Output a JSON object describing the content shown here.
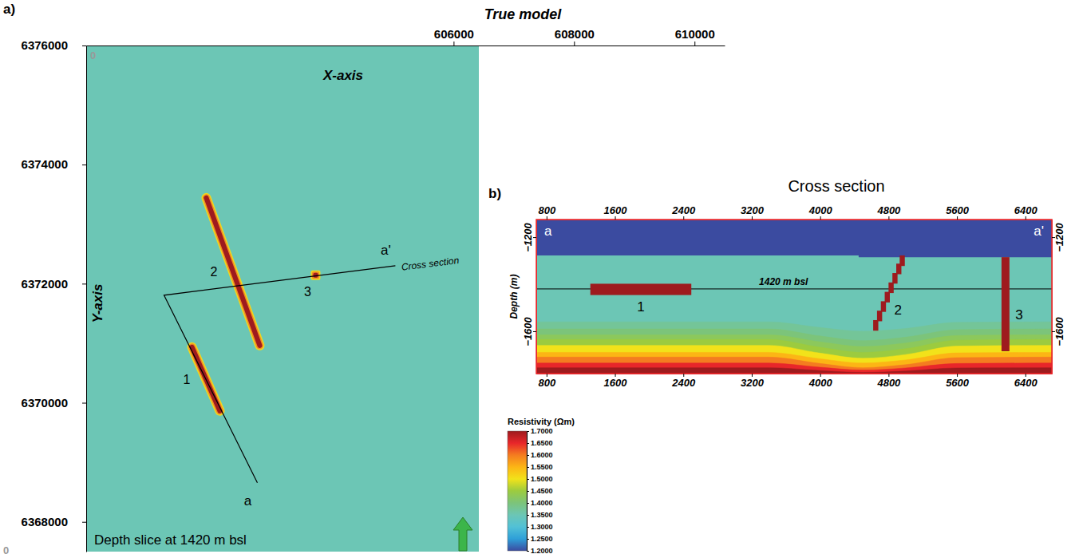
{
  "chart_data": [
    {
      "type": "map",
      "panel": "a)",
      "title": "True model",
      "x_label": "X-axis",
      "y_label": "Y-axis",
      "annotation": "Depth slice at 1420 m bsl",
      "origin_labels": [
        "0",
        "0"
      ],
      "xlim": [
        599900,
        610500
      ],
      "ylim": [
        6367500,
        6376000
      ],
      "xticks": [
        606000,
        608000,
        610000
      ],
      "yticks": [
        6368000,
        6370000,
        6372000,
        6374000,
        6376000
      ],
      "background_resistivity": 1.35,
      "feature_resistivity": 1.7,
      "features": [
        {
          "label": "1",
          "x": [
            601656,
            602119
          ],
          "y": [
            6370935,
            6369863
          ]
        },
        {
          "label": "2",
          "x": [
            601894,
            602781
          ],
          "y": [
            6373441,
            6370961
          ]
        },
        {
          "label": "3",
          "x": [
            603709
          ],
          "y": [
            6372141
          ]
        }
      ],
      "profile": {
        "x": [
          602742,
          601192,
          605033
        ],
        "y": [
          6368657,
          6371806,
          6372302
        ],
        "start_label": "a",
        "end_label": "a'",
        "label": "Cross section"
      }
    },
    {
      "type": "cross_section",
      "panel": "b)",
      "title": "Cross section",
      "y_label": "Depth (m)",
      "xlim": [
        680,
        6710
      ],
      "ylim": [
        -1780,
        -1125
      ],
      "xticks": [
        800,
        1600,
        2400,
        3200,
        4000,
        4800,
        5600,
        6400
      ],
      "yticks": [
        {
          "value": -1200,
          "label": "−1200"
        },
        {
          "value": -1600,
          "label": "−1600"
        }
      ],
      "start_label": "a",
      "end_label": "a'",
      "slice_depth": -1420,
      "slice_label": "1420 m bsl",
      "background_resistivity": 1.35,
      "top_layer": {
        "resistivity": 1.2,
        "x": [
          680,
          4450,
          4450,
          6710
        ],
        "bottom": [
          -1278,
          -1278,
          -1285,
          -1285
        ]
      },
      "layer_x": [
        680,
        3400,
        4000,
        4500,
        5000,
        5600,
        6710
      ],
      "layers": [
        {
          "resistivity": 1.375,
          "top": [
            -1560,
            -1560,
            -1584,
            -1600,
            -1588,
            -1562,
            -1560
          ]
        },
        {
          "resistivity": 1.4,
          "top": [
            -1590,
            -1590,
            -1620,
            -1640,
            -1625,
            -1593,
            -1590
          ]
        },
        {
          "resistivity": 1.425,
          "top": [
            -1615,
            -1615,
            -1645,
            -1665,
            -1650,
            -1618,
            -1615
          ]
        },
        {
          "resistivity": 1.45,
          "top": [
            -1635,
            -1635,
            -1668,
            -1690,
            -1674,
            -1638,
            -1635
          ]
        },
        {
          "resistivity": 1.5,
          "top": [
            -1660,
            -1660,
            -1693,
            -1715,
            -1699,
            -1663,
            -1660
          ]
        },
        {
          "resistivity": 1.55,
          "top": [
            -1690,
            -1690,
            -1717,
            -1735,
            -1722,
            -1692,
            -1690
          ]
        },
        {
          "resistivity": 1.6,
          "top": [
            -1710,
            -1710,
            -1737,
            -1755,
            -1742,
            -1712,
            -1710
          ]
        },
        {
          "resistivity": 1.65,
          "top": [
            -1735,
            -1735,
            -1753,
            -1765,
            -1756,
            -1737,
            -1735
          ]
        },
        {
          "resistivity": 1.7,
          "top": [
            -1755,
            -1755,
            -1767,
            -1775,
            -1769,
            -1756,
            -1755
          ]
        }
      ],
      "bodies": [
        {
          "label": "1",
          "resistivity": 1.7,
          "x": [
            1312,
            2493
          ],
          "depth": [
            -1398,
            -1446
          ]
        },
        {
          "label": "2",
          "resistivity": 1.7,
          "x": [
            4650,
            4695,
            4740,
            4785,
            4830,
            4875,
            4920,
            4960
          ],
          "depth": [
            -1575,
            -1535,
            -1495,
            -1455,
            -1415,
            -1375,
            -1335,
            -1300
          ],
          "cell_width": 60,
          "cell_height": 45
        },
        {
          "label": "3",
          "resistivity": 1.7,
          "x": [
            6121,
            6214
          ],
          "depth": [
            -1285,
            -1685
          ]
        }
      ],
      "colorbar": {
        "label": "Resistivity (Ωm)",
        "range": [
          1.2,
          1.7
        ],
        "ticks": [
          {
            "value": 1.7,
            "label": "1.7000"
          },
          {
            "value": 1.65,
            "label": "1.6500"
          },
          {
            "value": 1.6,
            "label": "1.6000"
          },
          {
            "value": 1.55,
            "label": "1.5500"
          },
          {
            "value": 1.5,
            "label": "1.5000"
          },
          {
            "value": 1.45,
            "label": "1.4500"
          },
          {
            "value": 1.4,
            "label": "1.4000"
          },
          {
            "value": 1.35,
            "label": "1.3500"
          },
          {
            "value": 1.3,
            "label": "1.3000"
          },
          {
            "value": 1.25,
            "label": "1.2500"
          },
          {
            "value": 1.2,
            "label": "1.2000"
          }
        ],
        "stops": [
          1.2,
          1.25,
          1.3,
          1.35,
          1.4,
          1.45,
          1.5,
          1.55,
          1.6,
          1.65,
          1.7
        ],
        "colors": [
          "#3b4ba0",
          "#2e9fd8",
          "#52c1d6",
          "#6cc6b5",
          "#7cc47a",
          "#9ccb3f",
          "#f2e21a",
          "#fcb515",
          "#f47c20",
          "#e8262a",
          "#9e1b1e"
        ]
      }
    }
  ]
}
